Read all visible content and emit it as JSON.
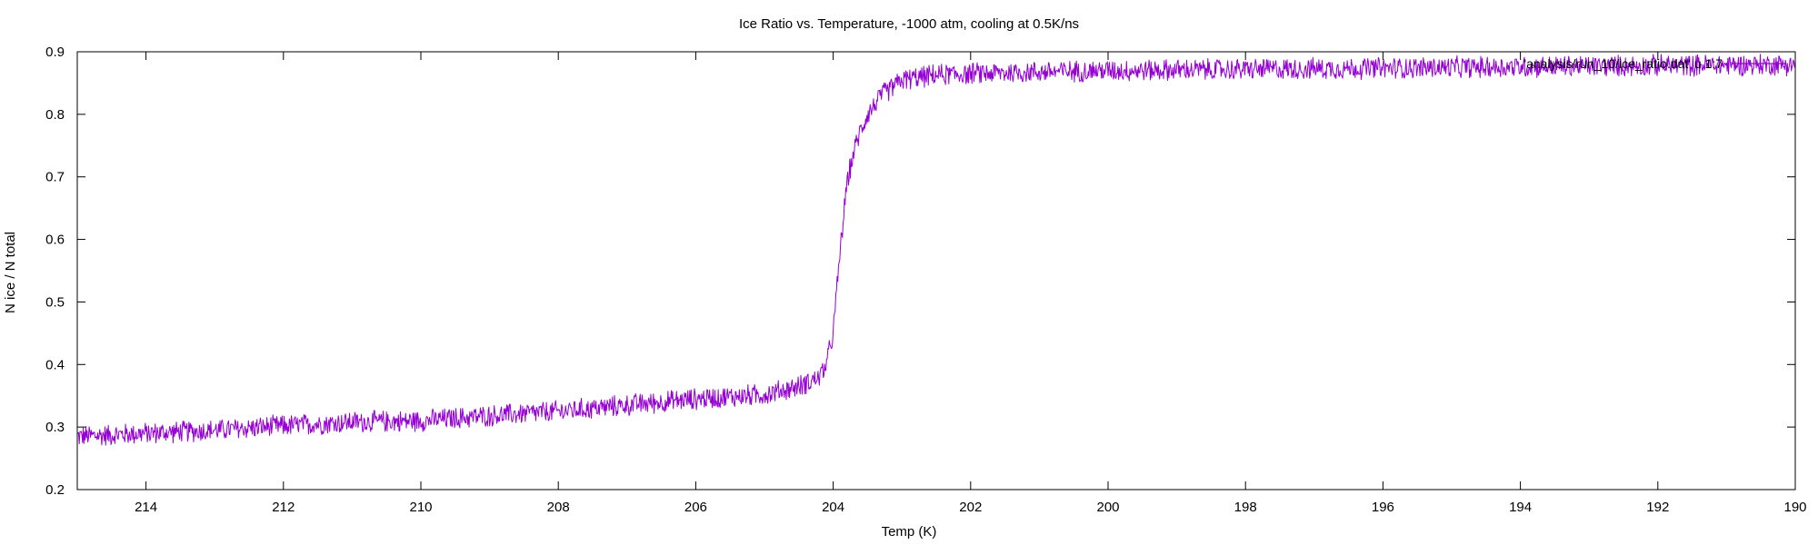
{
  "chart_data": {
    "type": "line",
    "title": "Ice Ratio vs. Temperature, -1000 atm, cooling at 0.5K/ns",
    "xlabel": "Temp (K)",
    "ylabel": "N ice / N total",
    "x_reversed": true,
    "xlim": [
      215,
      190
    ],
    "ylim": [
      0.2,
      0.9
    ],
    "xticks": [
      214,
      212,
      210,
      208,
      206,
      204,
      202,
      200,
      198,
      196,
      194,
      192,
      190
    ],
    "yticks": [
      0.2,
      0.3,
      0.4,
      0.5,
      0.6,
      0.7,
      0.8,
      0.9
    ],
    "grid": false,
    "legend_position": "top-right",
    "series": [
      {
        "name": "'analysis/run_10/ice_ratio.dat' u 1:7",
        "color": "#9400d3",
        "noise_amplitude": 0.012,
        "x": [
          215.0,
          214.0,
          213.0,
          212.0,
          211.0,
          210.0,
          209.0,
          208.0,
          207.0,
          206.0,
          205.0,
          204.5,
          204.2,
          204.1,
          204.0,
          203.9,
          203.8,
          203.7,
          203.6,
          203.5,
          203.3,
          203.0,
          202.5,
          202.0,
          201.0,
          200.0,
          199.0,
          198.0,
          197.0,
          196.0,
          195.0,
          194.0,
          193.0,
          192.0,
          191.0,
          190.0
        ],
        "y": [
          0.285,
          0.29,
          0.295,
          0.302,
          0.308,
          0.31,
          0.318,
          0.325,
          0.335,
          0.345,
          0.352,
          0.365,
          0.38,
          0.4,
          0.45,
          0.58,
          0.69,
          0.74,
          0.775,
          0.8,
          0.83,
          0.855,
          0.863,
          0.865,
          0.868,
          0.87,
          0.871,
          0.872,
          0.873,
          0.874,
          0.875,
          0.876,
          0.877,
          0.878,
          0.879,
          0.88
        ]
      }
    ]
  }
}
